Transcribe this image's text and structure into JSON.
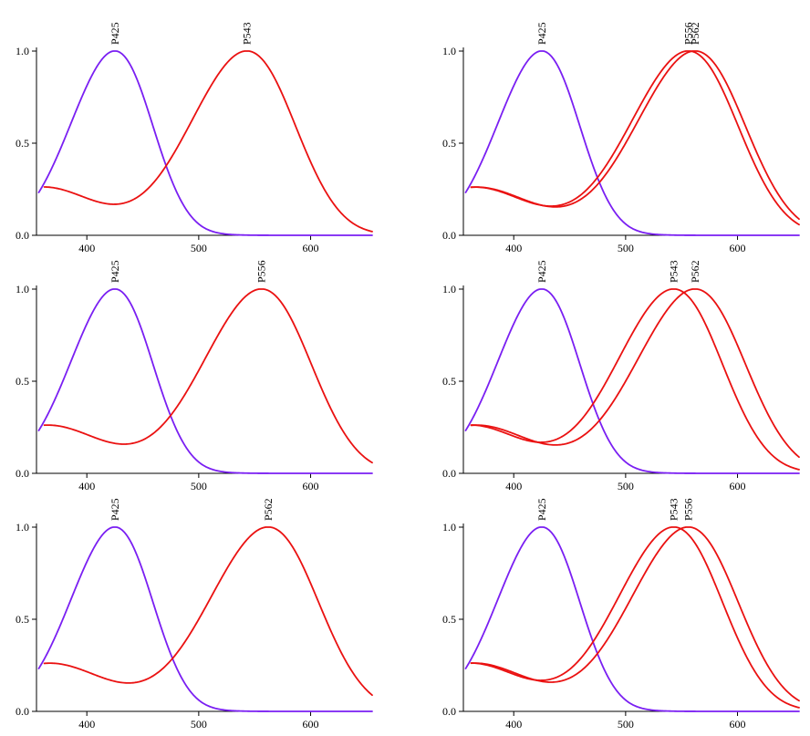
{
  "colors": {
    "short_wave": "#7a1ff2",
    "long_wave": "#ea1111",
    "axis": "#000000"
  },
  "chart_data": [
    {
      "type": "line",
      "xlim": [
        355,
        655
      ],
      "ylim": [
        0,
        1.0
      ],
      "x_ticks": [
        400,
        500,
        600
      ],
      "x_tick_labels": [
        "400",
        "500",
        "600"
      ],
      "y_ticks": [
        0,
        0.5,
        1.0
      ],
      "y_tick_labels": [
        "0.0",
        "0.5",
        "1.0"
      ],
      "grid": false,
      "series": [
        {
          "name": "P425",
          "peak_nm": 425,
          "kind": "short",
          "label": "P425"
        },
        {
          "name": "P543",
          "peak_nm": 543,
          "kind": "long",
          "label": "P543"
        }
      ]
    },
    {
      "type": "line",
      "xlim": [
        355,
        655
      ],
      "ylim": [
        0,
        1.0
      ],
      "x_ticks": [
        400,
        500,
        600
      ],
      "x_tick_labels": [
        "400",
        "500",
        "600"
      ],
      "y_ticks": [
        0,
        0.5,
        1.0
      ],
      "y_tick_labels": [
        "0.0",
        "0.5",
        "1.0"
      ],
      "grid": false,
      "series": [
        {
          "name": "P425",
          "peak_nm": 425,
          "kind": "short",
          "label": "P425"
        },
        {
          "name": "P556",
          "peak_nm": 556,
          "kind": "long",
          "label": "P556"
        },
        {
          "name": "P562",
          "peak_nm": 562,
          "kind": "long",
          "label": "P562"
        }
      ]
    },
    {
      "type": "line",
      "xlim": [
        355,
        655
      ],
      "ylim": [
        0,
        1.0
      ],
      "x_ticks": [
        400,
        500,
        600
      ],
      "x_tick_labels": [
        "400",
        "500",
        "600"
      ],
      "y_ticks": [
        0,
        0.5,
        1.0
      ],
      "y_tick_labels": [
        "0.0",
        "0.5",
        "1.0"
      ],
      "grid": false,
      "series": [
        {
          "name": "P425",
          "peak_nm": 425,
          "kind": "short",
          "label": "P425"
        },
        {
          "name": "P556",
          "peak_nm": 556,
          "kind": "long",
          "label": "P556"
        }
      ]
    },
    {
      "type": "line",
      "xlim": [
        355,
        655
      ],
      "ylim": [
        0,
        1.0
      ],
      "x_ticks": [
        400,
        500,
        600
      ],
      "x_tick_labels": [
        "400",
        "500",
        "600"
      ],
      "y_ticks": [
        0,
        0.5,
        1.0
      ],
      "y_tick_labels": [
        "0.0",
        "0.5",
        "1.0"
      ],
      "grid": false,
      "series": [
        {
          "name": "P425",
          "peak_nm": 425,
          "kind": "short",
          "label": "P425"
        },
        {
          "name": "P543",
          "peak_nm": 543,
          "kind": "long",
          "label": "P543"
        },
        {
          "name": "P562",
          "peak_nm": 562,
          "kind": "long",
          "label": "P562"
        }
      ]
    },
    {
      "type": "line",
      "xlim": [
        355,
        655
      ],
      "ylim": [
        0,
        1.0
      ],
      "x_ticks": [
        400,
        500,
        600
      ],
      "x_tick_labels": [
        "400",
        "500",
        "600"
      ],
      "y_ticks": [
        0,
        0.5,
        1.0
      ],
      "y_tick_labels": [
        "0.0",
        "0.5",
        "1.0"
      ],
      "grid": false,
      "series": [
        {
          "name": "P425",
          "peak_nm": 425,
          "kind": "short",
          "label": "P425"
        },
        {
          "name": "P562",
          "peak_nm": 562,
          "kind": "long",
          "label": "P562"
        }
      ]
    },
    {
      "type": "line",
      "xlim": [
        355,
        655
      ],
      "ylim": [
        0,
        1.0
      ],
      "x_ticks": [
        400,
        500,
        600
      ],
      "x_tick_labels": [
        "400",
        "500",
        "600"
      ],
      "y_ticks": [
        0,
        0.5,
        1.0
      ],
      "y_tick_labels": [
        "0.0",
        "0.5",
        "1.0"
      ],
      "grid": false,
      "series": [
        {
          "name": "P425",
          "peak_nm": 425,
          "kind": "short",
          "label": "P425"
        },
        {
          "name": "P543",
          "peak_nm": 543,
          "kind": "long",
          "label": "P543"
        },
        {
          "name": "P556",
          "peak_nm": 556,
          "kind": "long",
          "label": "P556"
        }
      ]
    }
  ]
}
